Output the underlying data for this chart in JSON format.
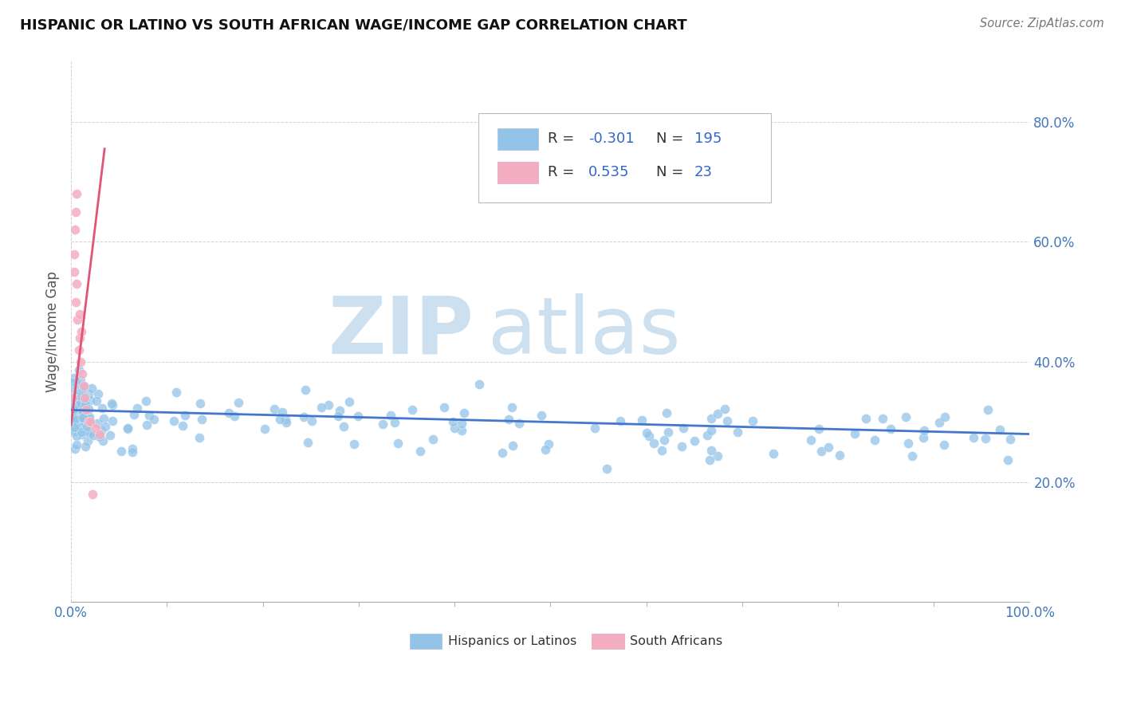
{
  "title": "HISPANIC OR LATINO VS SOUTH AFRICAN WAGE/INCOME GAP CORRELATION CHART",
  "source": "Source: ZipAtlas.com",
  "ylabel": "Wage/Income Gap",
  "legend_label_blue": "Hispanics or Latinos",
  "legend_label_pink": "South Africans",
  "legend_r_blue": "-0.301",
  "legend_n_blue": "195",
  "legend_r_pink": "0.535",
  "legend_n_pink": "23",
  "blue_color": "#93c4e8",
  "pink_color": "#f4adc0",
  "blue_line_color": "#4477cc",
  "pink_line_color": "#e05575",
  "xlim": [
    0.0,
    1.0
  ],
  "ylim": [
    0.0,
    0.9
  ],
  "ytick_vals": [
    0.2,
    0.4,
    0.6,
    0.8
  ],
  "ytick_labels": [
    "20.0%",
    "40.0%",
    "60.0%",
    "80.0%"
  ],
  "watermark_zip": "ZIP",
  "watermark_atlas": "atlas",
  "watermark_color": "#cce0f0",
  "background_color": "#ffffff",
  "grid_color": "#cccccc"
}
